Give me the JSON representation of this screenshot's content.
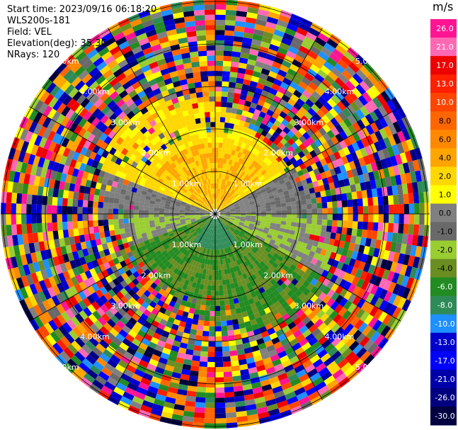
{
  "header": {
    "start_time": "Start time: 2023/09/16 06:18:20",
    "instrument": "WLS200s-181",
    "field": "Field: VEL",
    "elevation": "Elevation(deg): 35.30",
    "nrays": "NRays: 120"
  },
  "colorbar": {
    "unit": "m/s",
    "labels": [
      "26.0",
      "21.0",
      "17.0",
      "13.0",
      "10.0",
      "8.0",
      "6.0",
      "4.0",
      "2.0",
      "1.0",
      "0.0",
      "-1.0",
      "-2.0",
      "-4.0",
      "-6.0",
      "-8.0",
      "-10.0",
      "-13.0",
      "-17.0",
      "-21.0",
      "-26.0",
      "-30.0"
    ],
    "colors": [
      "#ff1493",
      "#ff69b4",
      "#ee0000",
      "#ff2000",
      "#ff4500",
      "#ff6600",
      "#ff8800",
      "#ffa500",
      "#ffd700",
      "#ffff00",
      "#808080",
      "#696969",
      "#9acd32",
      "#6b8e23",
      "#228b22",
      "#2e8b57",
      "#1e90ff",
      "#0000cd",
      "#0000ff",
      "#0000aa",
      "#000080",
      "#000040"
    ]
  },
  "plot": {
    "ring_labels": [
      "1.00km",
      "2.00km",
      "3.00km",
      "4.00km",
      "5.00km"
    ]
  }
}
